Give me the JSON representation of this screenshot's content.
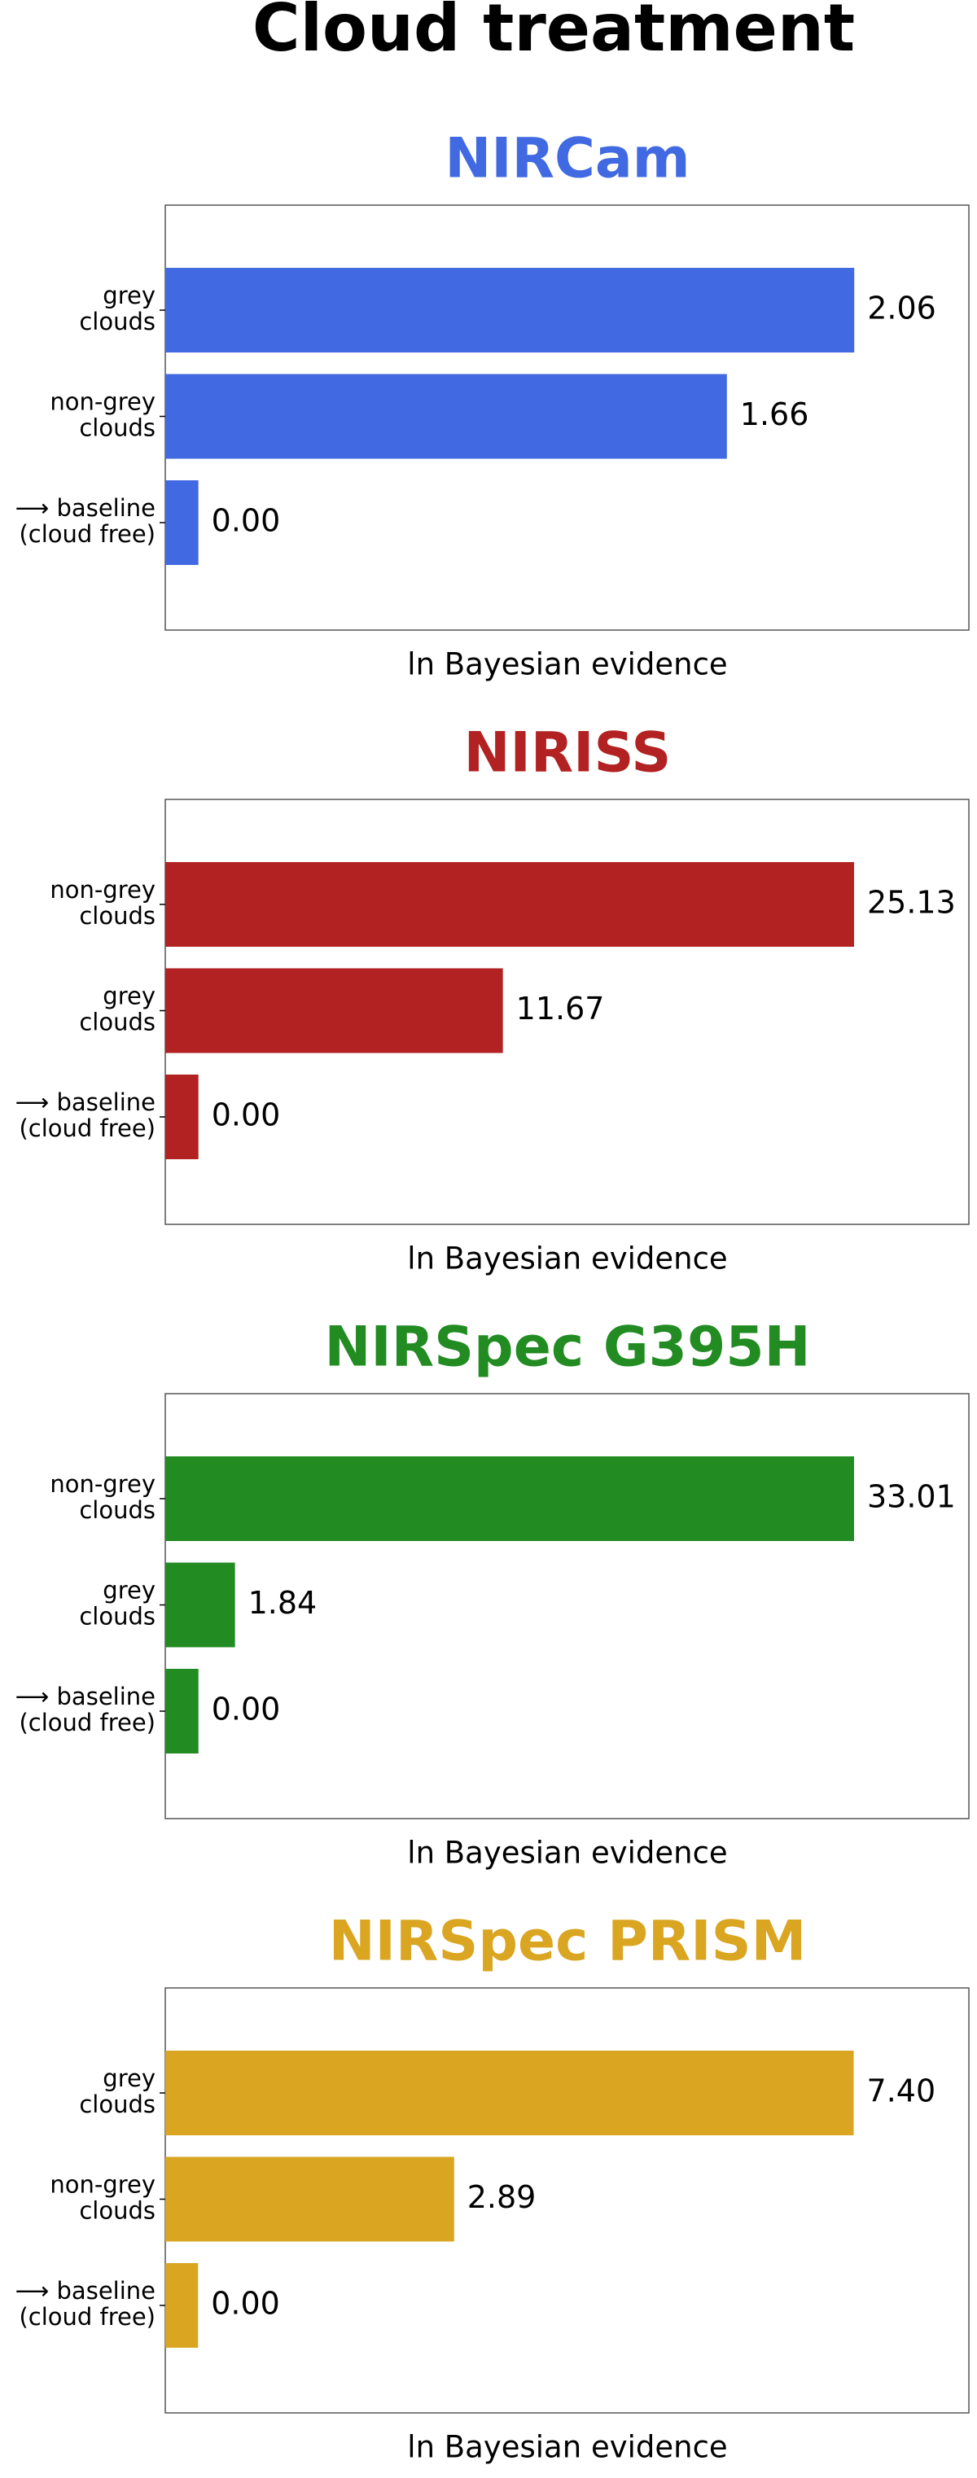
{
  "title": "Cloud treatment",
  "chart_data": [
    {
      "type": "bar",
      "orientation": "horizontal",
      "title": "NIRCam",
      "xlabel": "ln Bayesian evidence",
      "categories": [
        "grey\nclouds",
        "non-grey\nclouds",
        "⟶ baseline\n(cloud free)"
      ],
      "values": [
        2.06,
        1.66,
        0
      ],
      "value_labels": [
        "2.06",
        "1.66",
        "0.00"
      ],
      "color": "#4169e1",
      "xlim": [
        -0.104,
        2.42
      ]
    },
    {
      "type": "bar",
      "orientation": "horizontal",
      "title": "NIRISS",
      "xlabel": "ln Bayesian evidence",
      "categories": [
        "non-grey\nclouds",
        "grey\nclouds",
        "⟶ baseline\n(cloud free)"
      ],
      "values": [
        25.13,
        11.67,
        0
      ],
      "value_labels": [
        "25.13",
        "11.67",
        "0.00"
      ],
      "color": "#b22222",
      "xlim": [
        -1.27,
        29.53
      ]
    },
    {
      "type": "bar",
      "orientation": "horizontal",
      "title": "NIRSpec G395H",
      "xlabel": "ln Bayesian evidence",
      "categories": [
        "non-grey\nclouds",
        "grey\nclouds",
        "⟶ baseline\n(cloud free)"
      ],
      "values": [
        33.01,
        1.84,
        0
      ],
      "value_labels": [
        "33.01",
        "1.84",
        "0.00"
      ],
      "color": "#228b22",
      "xlim": [
        -1.67,
        38.79
      ]
    },
    {
      "type": "bar",
      "orientation": "horizontal",
      "title": "NIRSpec PRISM",
      "xlabel": "ln Bayesian evidence",
      "categories": [
        "grey\nclouds",
        "non-grey\nclouds",
        "⟶ baseline\n(cloud free)"
      ],
      "values": [
        7.4,
        2.89,
        0
      ],
      "value_labels": [
        "7.40",
        "2.89",
        "0.00"
      ],
      "color": "#daa520",
      "xlim": [
        -0.37,
        8.7
      ]
    }
  ]
}
